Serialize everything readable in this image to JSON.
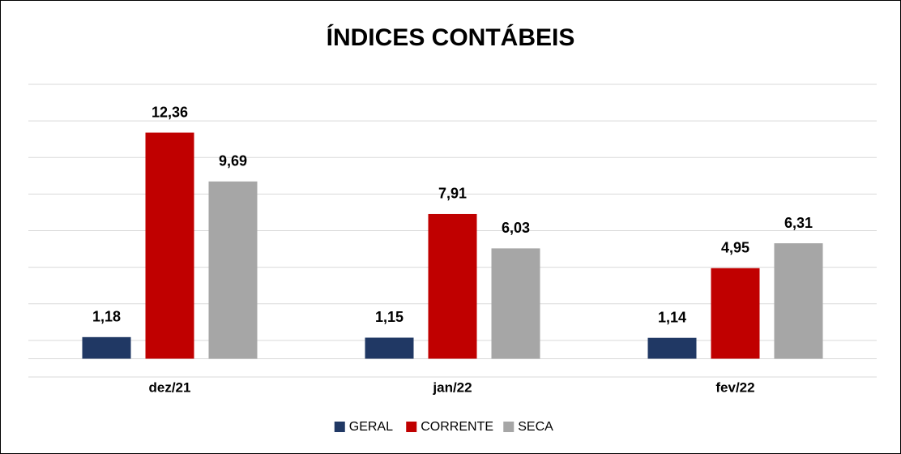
{
  "chart_data": {
    "type": "bar",
    "title": "ÍNDICES CONTÁBEIS",
    "categories": [
      "dez/21",
      "jan/22",
      "fev/22"
    ],
    "series": [
      {
        "name": "GERAL",
        "color": "#203864",
        "values": [
          1.18,
          1.15,
          1.14
        ],
        "value_labels": [
          "1,18",
          "1,15",
          "1,14"
        ]
      },
      {
        "name": "CORRENTE",
        "color": "#c00000",
        "values": [
          12.36,
          7.91,
          4.95
        ],
        "value_labels": [
          "12,36",
          "7,91",
          "4,95"
        ]
      },
      {
        "name": "SECA",
        "color": "#a6a6a6",
        "values": [
          9.69,
          6.03,
          6.31
        ],
        "value_labels": [
          "9,69",
          "6,03",
          "6,31"
        ]
      }
    ],
    "ylim": [
      -1,
      15
    ],
    "yticks": [
      -1,
      1,
      3,
      5,
      7,
      9,
      11,
      13,
      15
    ],
    "grid": true,
    "legend": "bottom"
  }
}
